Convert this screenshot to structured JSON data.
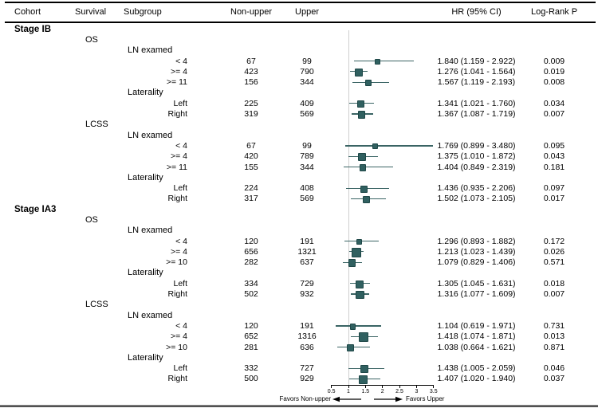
{
  "header": {
    "cohort": "Cohort",
    "survival": "Survival",
    "subgroup": "Subgroup",
    "non_upper": "Non-upper",
    "upper": "Upper",
    "hr": "HR (95% CI)",
    "p": "Log-Rank P"
  },
  "colors": {
    "marker": "#306060",
    "marker_border": "#1e4747",
    "ci_line": "#3a6464",
    "ref_line": "#cfcfcf"
  },
  "chart_data": {
    "type": "forest",
    "xlim": [
      0.5,
      3.5
    ],
    "x_ticks": [
      0.5,
      1,
      1.5,
      2,
      2.5,
      3,
      3.5
    ],
    "reference_value": 1,
    "favors_left": "Favors Non-upper",
    "favors_right": "Favors Upper",
    "columns": [
      "Cohort",
      "Survival",
      "Subgroup",
      "Non-upper",
      "Upper",
      "HR (95% CI)",
      "Log-Rank P"
    ],
    "rows": [
      {
        "type": "cohort",
        "label": "Stage IB"
      },
      {
        "type": "survival",
        "label": "OS"
      },
      {
        "type": "group",
        "label": "LN examed"
      },
      {
        "type": "item",
        "label": "< 4",
        "non_upper": "67",
        "upper": "99",
        "hr": 1.84,
        "lo": 1.159,
        "hi": 2.922,
        "hr_text": "1.840 (1.159 - 2.922)",
        "p": "0.009"
      },
      {
        "type": "item",
        "label": ">= 4",
        "non_upper": "423",
        "upper": "790",
        "hr": 1.276,
        "lo": 1.041,
        "hi": 1.564,
        "hr_text": "1.276 (1.041 - 1.564)",
        "p": "0.019"
      },
      {
        "type": "item",
        "label": ">= 11",
        "non_upper": "156",
        "upper": "344",
        "hr": 1.567,
        "lo": 1.119,
        "hi": 2.193,
        "hr_text": "1.567 (1.119 - 2.193)",
        "p": "0.008"
      },
      {
        "type": "group",
        "label": "Laterality"
      },
      {
        "type": "item",
        "label": "Left",
        "non_upper": "225",
        "upper": "409",
        "hr": 1.341,
        "lo": 1.021,
        "hi": 1.76,
        "hr_text": "1.341 (1.021 - 1.760)",
        "p": "0.034"
      },
      {
        "type": "item",
        "label": "Right",
        "non_upper": "319",
        "upper": "569",
        "hr": 1.367,
        "lo": 1.087,
        "hi": 1.719,
        "hr_text": "1.367 (1.087 - 1.719)",
        "p": "0.007"
      },
      {
        "type": "survival",
        "label": "LCSS"
      },
      {
        "type": "group",
        "label": "LN examed"
      },
      {
        "type": "item",
        "label": "< 4",
        "non_upper": "67",
        "upper": "99",
        "hr": 1.769,
        "lo": 0.899,
        "hi": 3.48,
        "hr_text": "1.769 (0.899 - 3.480)",
        "p": "0.095"
      },
      {
        "type": "item",
        "label": ">= 4",
        "non_upper": "420",
        "upper": "789",
        "hr": 1.375,
        "lo": 1.01,
        "hi": 1.872,
        "hr_text": "1.375 (1.010 - 1.872)",
        "p": "0.043"
      },
      {
        "type": "item",
        "label": ">= 11",
        "non_upper": "155",
        "upper": "344",
        "hr": 1.404,
        "lo": 0.849,
        "hi": 2.319,
        "hr_text": "1.404 (0.849 - 2.319)",
        "p": "0.181"
      },
      {
        "type": "group",
        "label": "Laterality"
      },
      {
        "type": "item",
        "label": "Left",
        "non_upper": "224",
        "upper": "408",
        "hr": 1.436,
        "lo": 0.935,
        "hi": 2.206,
        "hr_text": "1.436 (0.935 - 2.206)",
        "p": "0.097"
      },
      {
        "type": "item",
        "label": "Right",
        "non_upper": "317",
        "upper": "569",
        "hr": 1.502,
        "lo": 1.073,
        "hi": 2.105,
        "hr_text": "1.502 (1.073 - 2.105)",
        "p": "0.017"
      },
      {
        "type": "cohort",
        "label": "Stage IA3"
      },
      {
        "type": "survival",
        "label": "OS"
      },
      {
        "type": "group",
        "label": "LN examed"
      },
      {
        "type": "item",
        "label": "< 4",
        "non_upper": "120",
        "upper": "191",
        "hr": 1.296,
        "lo": 0.893,
        "hi": 1.882,
        "hr_text": "1.296 (0.893 - 1.882)",
        "p": "0.172"
      },
      {
        "type": "item",
        "label": ">= 4",
        "non_upper": "656",
        "upper": "1321",
        "hr": 1.213,
        "lo": 1.023,
        "hi": 1.439,
        "hr_text": "1.213 (1.023 - 1.439)",
        "p": "0.026"
      },
      {
        "type": "item",
        "label": ">= 10",
        "non_upper": "282",
        "upper": "637",
        "hr": 1.079,
        "lo": 0.829,
        "hi": 1.406,
        "hr_text": "1.079 (0.829 - 1.406)",
        "p": "0.571"
      },
      {
        "type": "group",
        "label": "Laterality"
      },
      {
        "type": "item",
        "label": "Left",
        "non_upper": "334",
        "upper": "729",
        "hr": 1.305,
        "lo": 1.045,
        "hi": 1.631,
        "hr_text": "1.305 (1.045 - 1.631)",
        "p": "0.018"
      },
      {
        "type": "item",
        "label": "Right",
        "non_upper": "502",
        "upper": "932",
        "hr": 1.316,
        "lo": 1.077,
        "hi": 1.609,
        "hr_text": "1.316 (1.077 - 1.609)",
        "p": "0.007"
      },
      {
        "type": "survival",
        "label": "LCSS"
      },
      {
        "type": "group",
        "label": "LN examed"
      },
      {
        "type": "item",
        "label": "< 4",
        "non_upper": "120",
        "upper": "191",
        "hr": 1.104,
        "lo": 0.619,
        "hi": 1.971,
        "hr_text": "1.104 (0.619 - 1.971)",
        "p": "0.731"
      },
      {
        "type": "item",
        "label": ">= 4",
        "non_upper": "652",
        "upper": "1316",
        "hr": 1.418,
        "lo": 1.074,
        "hi": 1.871,
        "hr_text": "1.418 (1.074 - 1.871)",
        "p": "0.013"
      },
      {
        "type": "item",
        "label": ">= 10",
        "non_upper": "281",
        "upper": "636",
        "hr": 1.038,
        "lo": 0.664,
        "hi": 1.621,
        "hr_text": "1.038 (0.664 - 1.621)",
        "p": "0.871"
      },
      {
        "type": "group",
        "label": "Laterality"
      },
      {
        "type": "item",
        "label": "Left",
        "non_upper": "332",
        "upper": "727",
        "hr": 1.438,
        "lo": 1.005,
        "hi": 2.059,
        "hr_text": "1.438 (1.005 - 2.059)",
        "p": "0.046"
      },
      {
        "type": "item",
        "label": "Right",
        "non_upper": "500",
        "upper": "929",
        "hr": 1.407,
        "lo": 1.02,
        "hi": 1.94,
        "hr_text": "1.407 (1.020 - 1.940)",
        "p": "0.037"
      }
    ]
  }
}
